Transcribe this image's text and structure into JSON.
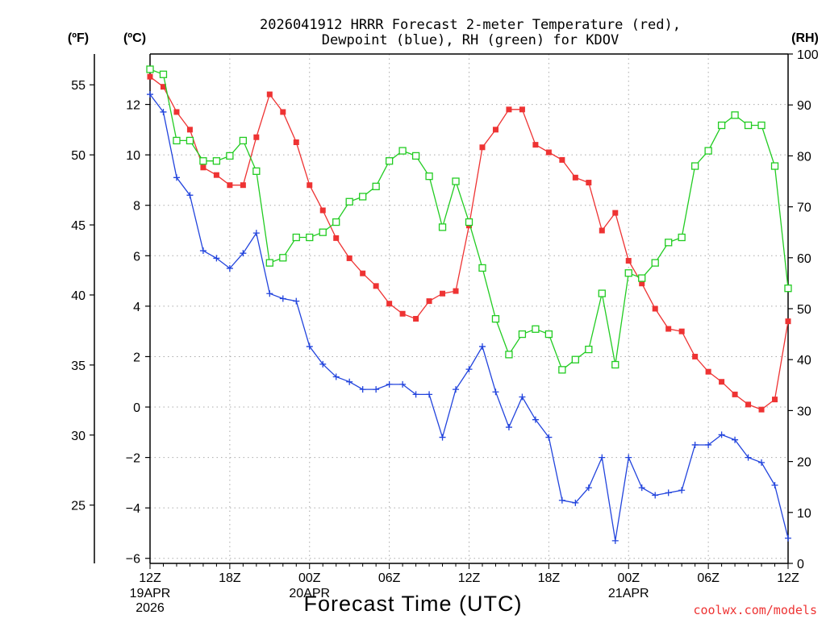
{
  "chart_data": {
    "type": "line",
    "title": "2026041912 HRRR Forecast 2-meter Temperature (red),",
    "subtitle": "Dewpoint (blue), RH (green) for KDOV",
    "xlabel": "Forecast Time (UTC)",
    "unit_labels": {
      "fahrenheit": "(ºF)",
      "celsius": "(ºC)",
      "rh": "(RH)"
    },
    "credit": "coolwx.com/models",
    "x_hours": [
      0,
      1,
      2,
      3,
      4,
      5,
      6,
      7,
      8,
      9,
      10,
      11,
      12,
      13,
      14,
      15,
      16,
      17,
      18,
      19,
      20,
      21,
      22,
      23,
      24,
      25,
      26,
      27,
      28,
      29,
      30,
      31,
      32,
      33,
      34,
      35,
      36,
      37,
      38,
      39,
      40,
      41,
      42,
      43,
      44,
      45,
      46,
      47,
      48
    ],
    "x_range": [
      0,
      48
    ],
    "x_ticks": [
      {
        "hour": 0,
        "label": "12Z",
        "sub1": "19APR",
        "sub2": "2026"
      },
      {
        "hour": 6,
        "label": "18Z",
        "sub1": "",
        "sub2": ""
      },
      {
        "hour": 12,
        "label": "00Z",
        "sub1": "20APR",
        "sub2": ""
      },
      {
        "hour": 18,
        "label": "06Z",
        "sub1": "",
        "sub2": ""
      },
      {
        "hour": 24,
        "label": "12Z",
        "sub1": "",
        "sub2": ""
      },
      {
        "hour": 30,
        "label": "18Z",
        "sub1": "",
        "sub2": ""
      },
      {
        "hour": 36,
        "label": "00Z",
        "sub1": "21APR",
        "sub2": ""
      },
      {
        "hour": 42,
        "label": "06Z",
        "sub1": "",
        "sub2": ""
      },
      {
        "hour": 48,
        "label": "12Z",
        "sub1": "",
        "sub2": ""
      }
    ],
    "celsius_range": [
      -6.2,
      14
    ],
    "celsius_ticks": [
      {
        "value": -6,
        "label": "−6"
      },
      {
        "value": -4,
        "label": "−4"
      },
      {
        "value": -2,
        "label": "−2"
      },
      {
        "value": 0,
        "label": "0"
      },
      {
        "value": 2,
        "label": "2"
      },
      {
        "value": 4,
        "label": "4"
      },
      {
        "value": 6,
        "label": "6"
      },
      {
        "value": 8,
        "label": "8"
      },
      {
        "value": 10,
        "label": "10"
      },
      {
        "value": 12,
        "label": "12"
      }
    ],
    "fahrenheit_ticks": [
      {
        "value": 25,
        "label": "25"
      },
      {
        "value": 30,
        "label": "30"
      },
      {
        "value": 35,
        "label": "35"
      },
      {
        "value": 40,
        "label": "40"
      },
      {
        "value": 45,
        "label": "45"
      },
      {
        "value": 50,
        "label": "50"
      },
      {
        "value": 55,
        "label": "55"
      }
    ],
    "rh_range": [
      0,
      100
    ],
    "rh_ticks": [
      {
        "value": 0,
        "label": "0"
      },
      {
        "value": 10,
        "label": "10"
      },
      {
        "value": 20,
        "label": "20"
      },
      {
        "value": 30,
        "label": "30"
      },
      {
        "value": 40,
        "label": "40"
      },
      {
        "value": 50,
        "label": "50"
      },
      {
        "value": 60,
        "label": "60"
      },
      {
        "value": 70,
        "label": "70"
      },
      {
        "value": 80,
        "label": "80"
      },
      {
        "value": 90,
        "label": "90"
      },
      {
        "value": 100,
        "label": "100"
      }
    ],
    "grid": true,
    "series": [
      {
        "key": "temperature",
        "axis": "celsius",
        "color": "#ee3333",
        "marker": "filled-square",
        "values": [
          13.1,
          12.7,
          11.7,
          11.0,
          9.5,
          9.2,
          8.8,
          8.8,
          10.7,
          12.4,
          11.7,
          10.5,
          8.8,
          7.8,
          6.7,
          5.9,
          5.3,
          4.8,
          4.1,
          3.7,
          3.5,
          4.2,
          4.5,
          4.6,
          7.2,
          10.3,
          11.0,
          11.8,
          11.8,
          10.4,
          10.1,
          9.8,
          9.1,
          8.9,
          7.0,
          7.7,
          5.8,
          4.9,
          3.9,
          3.1,
          3.0,
          2.0,
          1.4,
          1.0,
          0.5,
          0.1,
          -0.1,
          0.3,
          3.4
        ]
      },
      {
        "key": "dewpoint",
        "axis": "celsius",
        "color": "#2244dd",
        "marker": "plus",
        "values": [
          12.4,
          11.7,
          9.1,
          8.4,
          6.2,
          5.9,
          5.5,
          6.1,
          6.9,
          4.5,
          4.3,
          4.2,
          2.4,
          1.7,
          1.2,
          1.0,
          0.7,
          0.7,
          0.9,
          0.9,
          0.5,
          0.5,
          -1.2,
          0.7,
          1.5,
          2.4,
          0.6,
          -0.8,
          0.4,
          -0.5,
          -1.2,
          -3.7,
          -3.8,
          -3.2,
          -2.0,
          -5.3,
          -2.0,
          -3.2,
          -3.5,
          -3.4,
          -3.3,
          -1.5,
          -1.5,
          -1.1,
          -1.3,
          -2.0,
          -2.2,
          -3.1,
          -5.2
        ]
      },
      {
        "key": "rh",
        "axis": "rh",
        "color": "#22cc22",
        "marker": "open-square",
        "values": [
          97,
          96,
          83,
          83,
          79,
          79,
          80,
          83,
          77,
          59,
          60,
          64,
          64,
          65,
          67,
          71,
          72,
          74,
          79,
          81,
          80,
          76,
          66,
          75,
          67,
          58,
          48,
          41,
          45,
          46,
          45,
          38,
          40,
          42,
          53,
          39,
          57,
          56,
          59,
          63,
          64,
          78,
          81,
          86,
          88,
          86,
          86,
          78,
          54
        ]
      }
    ]
  }
}
